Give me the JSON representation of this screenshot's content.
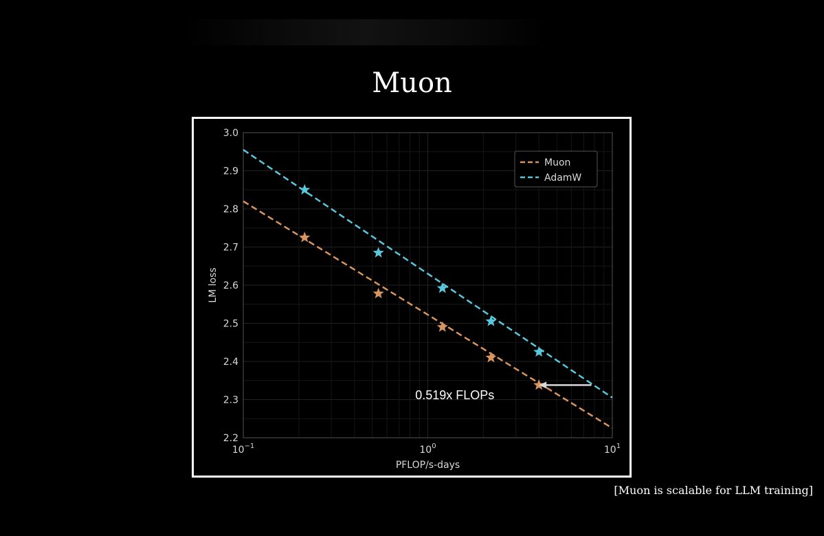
{
  "page": {
    "title": "Muon",
    "caption": "[Muon is scalable for LLM training]"
  },
  "chart_data": {
    "type": "scatter",
    "xscale": "log",
    "xlim": [
      0.1,
      10
    ],
    "ylim": [
      2.2,
      3.0
    ],
    "xlabel": "PFLOP/s-days",
    "ylabel": "LM loss",
    "yticks": [
      2.2,
      2.3,
      2.4,
      2.5,
      2.6,
      2.7,
      2.8,
      2.9,
      3.0
    ],
    "ytick_labels": [
      "2.2",
      "2.3",
      "2.4",
      "2.5",
      "2.6",
      "2.7",
      "2.8",
      "2.9",
      "3.0"
    ],
    "xticks": [
      {
        "value": 0.1,
        "base": "10",
        "exp": "−1"
      },
      {
        "value": 1,
        "base": "10",
        "exp": "0"
      },
      {
        "value": 10,
        "base": "10",
        "exp": "1"
      }
    ],
    "grid": true,
    "legend_position": "top-right",
    "series": [
      {
        "name": "Muon",
        "color": "#d9955f",
        "marker": "star",
        "x": [
          0.215,
          0.54,
          1.2,
          2.2,
          4.0
        ],
        "y": [
          2.725,
          2.578,
          2.49,
          2.41,
          2.338
        ],
        "fit_line": {
          "x": [
            0.1,
            10
          ],
          "y": [
            2.82,
            2.225
          ]
        }
      },
      {
        "name": "AdamW",
        "color": "#5ac8dc",
        "marker": "star",
        "x": [
          0.215,
          0.54,
          1.2,
          2.2,
          4.0
        ],
        "y": [
          2.85,
          2.685,
          2.592,
          2.505,
          2.425
        ],
        "fit_line": {
          "x": [
            0.1,
            10
          ],
          "y": [
            2.955,
            2.305
          ]
        }
      }
    ],
    "annotation": {
      "text": "0.519x FLOPs",
      "arrow_from": {
        "x": 7.7,
        "y": 2.338
      },
      "arrow_to": {
        "x": 4.0,
        "y": 2.338
      },
      "text_anchor": {
        "x": 1.4,
        "y": 2.315
      }
    }
  }
}
